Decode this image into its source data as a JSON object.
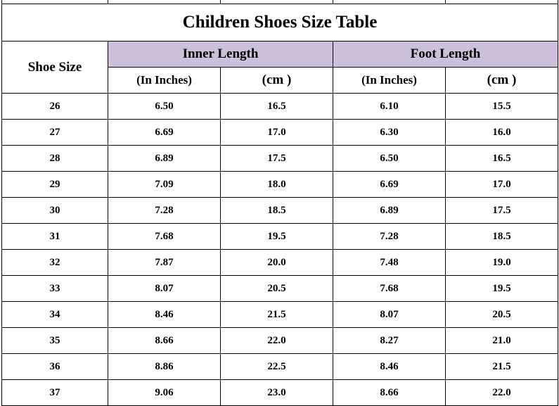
{
  "title": "Children Shoes Size Table",
  "header": {
    "shoe_size": "Shoe Size",
    "inner_length": "Inner Length",
    "foot_length": "Foot Length",
    "in_inches": "(In Inches)",
    "cm": "(cm )"
  },
  "rows": [
    [
      "26",
      "6.50",
      "16.5",
      "6.10",
      "15.5"
    ],
    [
      "27",
      "6.69",
      "17.0",
      "6.30",
      "16.0"
    ],
    [
      "28",
      "6.89",
      "17.5",
      "6.50",
      "16.5"
    ],
    [
      "29",
      "7.09",
      "18.0",
      "6.69",
      "17.0"
    ],
    [
      "30",
      "7.28",
      "18.5",
      "6.89",
      "17.5"
    ],
    [
      "31",
      "7.68",
      "19.5",
      "7.28",
      "18.5"
    ],
    [
      "32",
      "7.87",
      "20.0",
      "7.48",
      "19.0"
    ],
    [
      "33",
      "8.07",
      "20.5",
      "7.68",
      "19.5"
    ],
    [
      "34",
      "8.46",
      "21.5",
      "8.07",
      "20.5"
    ],
    [
      "35",
      "8.66",
      "22.0",
      "8.27",
      "21.0"
    ],
    [
      "36",
      "8.86",
      "22.5",
      "8.46",
      "21.5"
    ],
    [
      "37",
      "9.06",
      "23.0",
      "8.66",
      "22.0"
    ]
  ],
  "colors": {
    "header_fill": "#ccc0da",
    "border": "#000000"
  }
}
